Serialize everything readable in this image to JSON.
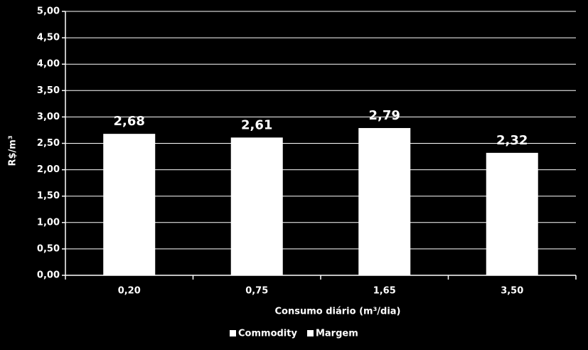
{
  "chart_data": {
    "type": "stacked-bar",
    "x_label": "Consumo diário (m³/dia)",
    "y_label": "R$/m³",
    "categories": [
      "0,20",
      "0,75",
      "1,65",
      "3,50"
    ],
    "series": [
      {
        "name": "Commodity",
        "color": "#ffffff",
        "values": [
          2.68,
          2.61,
          2.79,
          2.32
        ],
        "value_labels": [
          "2,68",
          "2,61",
          "2,79",
          "2,32"
        ]
      },
      {
        "name": "Margem",
        "color": "#ffffff",
        "values": [
          null,
          null,
          null,
          null
        ]
      }
    ],
    "ylim": [
      0,
      5
    ],
    "yticks": [
      {
        "value": 0,
        "label": "0,00"
      },
      {
        "value": 0.5,
        "label": "0,50"
      },
      {
        "value": 1,
        "label": "1,00"
      },
      {
        "value": 1.5,
        "label": "1,50"
      },
      {
        "value": 2,
        "label": "2,00"
      },
      {
        "value": 2.5,
        "label": "2,50"
      },
      {
        "value": 3,
        "label": "3,00"
      },
      {
        "value": 3.5,
        "label": "3,50"
      },
      {
        "value": 4,
        "label": "4,00"
      },
      {
        "value": 4.5,
        "label": "4,50"
      },
      {
        "value": 5,
        "label": "5,00"
      }
    ],
    "grid": true,
    "legend": "bottom"
  }
}
